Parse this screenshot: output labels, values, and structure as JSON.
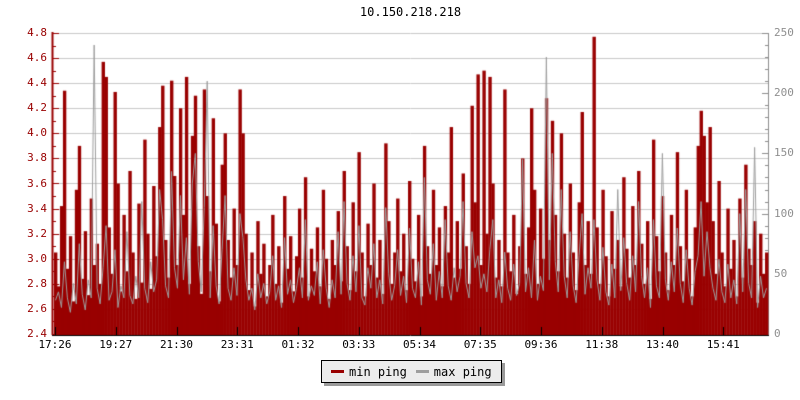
{
  "page": {
    "background": "#ffffff"
  },
  "chart": {
    "title": "10.150.218.218"
  },
  "legend": {
    "items": [
      {
        "label": "min ping",
        "color": "#990000"
      },
      {
        "label": "max ping",
        "color": "#9e9e9e"
      }
    ]
  },
  "chart_data": {
    "type": "bar+line",
    "title": "10.150.218.218",
    "grid": true,
    "legend_position": "bottom-center",
    "colors": {
      "bar": "#990000",
      "line": "#9e9e9e",
      "gridline": "#c8c8c8",
      "left_axis": "#990000",
      "right_axis": "#8c8c8c",
      "bottom_axis": "#000000"
    },
    "x_axis": {
      "tick_labels": [
        "17:26",
        "19:27",
        "21:30",
        "23:31",
        "01:32",
        "03:33",
        "05:34",
        "07:35",
        "09:36",
        "11:38",
        "13:40",
        "15:41"
      ]
    },
    "left_axis": {
      "min": 2.4,
      "max": 4.8,
      "tick_step": 0.2,
      "minor_step": 0.1,
      "tick_labels": [
        "4.8",
        "4.6",
        "4.4",
        "4.2",
        "4.0",
        "3.8",
        "3.6",
        "3.4",
        "3.2",
        "3.0",
        "2.8",
        "2.6",
        "2.4"
      ],
      "label_color": "#990000"
    },
    "right_axis": {
      "min": 0,
      "max": 250,
      "tick_step": 50,
      "minor_step": 10,
      "tick_labels": [
        "250",
        "200",
        "150",
        "100",
        "50",
        "0"
      ],
      "label_color": "#8f8f8f"
    },
    "series": [
      {
        "name": "min ping",
        "type": "bar",
        "axis": "left",
        "color": "#990000",
        "values": [
          3.05,
          2.78,
          3.42,
          4.34,
          2.92,
          3.18,
          2.66,
          3.55,
          3.9,
          2.84,
          3.22,
          2.71,
          3.48,
          2.95,
          3.12,
          2.8,
          4.57,
          4.45,
          3.25,
          2.88,
          4.33,
          3.6,
          2.74,
          3.35,
          2.9,
          3.7,
          3.05,
          2.68,
          3.44,
          2.81,
          3.95,
          3.2,
          2.76,
          3.58,
          3.02,
          4.05,
          4.38,
          3.15,
          2.85,
          4.42,
          3.66,
          2.95,
          4.2,
          3.35,
          4.45,
          2.8,
          3.98,
          4.3,
          3.1,
          2.72,
          4.35,
          3.5,
          2.9,
          4.12,
          3.28,
          2.66,
          3.75,
          4.0,
          3.15,
          2.85,
          3.4,
          2.95,
          4.35,
          4.0,
          3.2,
          2.75,
          3.05,
          2.62,
          3.3,
          2.88,
          3.12,
          2.7,
          2.95,
          3.35,
          2.8,
          3.1,
          2.65,
          3.5,
          2.92,
          3.18,
          2.74,
          3.02,
          3.4,
          2.85,
          3.65,
          2.7,
          3.08,
          2.9,
          3.25,
          2.78,
          3.55,
          3.0,
          2.68,
          3.15,
          2.95,
          3.38,
          2.82,
          3.7,
          3.1,
          2.75,
          3.45,
          2.9,
          3.85,
          3.05,
          2.7,
          3.28,
          2.95,
          3.6,
          2.85,
          3.15,
          2.72,
          3.92,
          3.3,
          2.8,
          3.05,
          3.48,
          2.9,
          3.2,
          2.75,
          3.62,
          3.0,
          2.82,
          3.35,
          2.7,
          3.9,
          3.1,
          2.88,
          3.55,
          2.95,
          3.25,
          2.78,
          3.42,
          3.05,
          4.05,
          2.85,
          3.3,
          2.92,
          3.68,
          3.1,
          2.8,
          4.22,
          3.45,
          4.47,
          2.95,
          4.5,
          3.2,
          4.45,
          3.6,
          2.85,
          3.15,
          2.78,
          4.35,
          3.05,
          2.9,
          3.35,
          2.72,
          3.1,
          3.8,
          2.88,
          3.25,
          4.2,
          3.55,
          2.8,
          3.4,
          3.0,
          4.28,
          3.15,
          4.1,
          3.35,
          2.9,
          4.0,
          3.2,
          2.85,
          3.6,
          3.05,
          2.75,
          3.45,
          4.17,
          2.95,
          3.3,
          2.88,
          4.77,
          3.25,
          2.8,
          3.55,
          3.02,
          2.7,
          3.38,
          2.92,
          3.15,
          2.78,
          3.65,
          3.08,
          2.85,
          3.42,
          2.95,
          3.7,
          3.12,
          2.8,
          3.3,
          2.68,
          3.95,
          3.18,
          2.9,
          3.5,
          3.05,
          2.75,
          3.35,
          2.95,
          3.85,
          3.1,
          2.82,
          3.55,
          3.0,
          2.7,
          3.25,
          3.9,
          4.18,
          3.98,
          3.45,
          4.05,
          3.3,
          2.88,
          3.62,
          3.05,
          2.78,
          3.4,
          2.92,
          3.15,
          2.7,
          3.48,
          2.85,
          3.75,
          3.08,
          2.95,
          3.3,
          2.65,
          3.2,
          2.88,
          3.05
        ]
      },
      {
        "name": "max ping",
        "type": "line",
        "axis": "right",
        "color": "#9e9e9e",
        "values": [
          28,
          35,
          22,
          60,
          30,
          18,
          42,
          25,
          75,
          33,
          20,
          45,
          30,
          240,
          38,
          25,
          55,
          90,
          28,
          35,
          70,
          22,
          40,
          30,
          85,
          32,
          25,
          48,
          30,
          110,
          38,
          26,
          60,
          35,
          45,
          120,
          95,
          40,
          30,
          135,
          55,
          38,
          115,
          45,
          80,
          33,
          125,
          150,
          60,
          35,
          105,
          210,
          30,
          90,
          40,
          25,
          70,
          115,
          38,
          28,
          55,
          32,
          100,
          80,
          45,
          28,
          38,
          20,
          50,
          30,
          42,
          25,
          35,
          65,
          28,
          40,
          22,
          80,
          33,
          45,
          26,
          38,
          55,
          30,
          95,
          28,
          40,
          32,
          60,
          25,
          70,
          38,
          22,
          45,
          30,
          85,
          33,
          110,
          42,
          28,
          65,
          35,
          90,
          30,
          24,
          55,
          38,
          75,
          30,
          45,
          25,
          105,
          50,
          28,
          40,
          70,
          32,
          48,
          26,
          88,
          38,
          30,
          60,
          24,
          130,
          45,
          33,
          75,
          28,
          52,
          30,
          95,
          40,
          28,
          55,
          35,
          48,
          110,
          42,
          30,
          85,
          55,
          65,
          38,
          50,
          35,
          70,
          95,
          30,
          45,
          26,
          68,
          38,
          28,
          58,
          32,
          42,
          145,
          35,
          55,
          30,
          78,
          28,
          48,
          36,
          230,
          45,
          150,
          60,
          35,
          120,
          48,
          30,
          85,
          40,
          26,
          65,
          100,
          33,
          55,
          38,
          95,
          45,
          28,
          72,
          35,
          24,
          58,
          30,
          120,
          36,
          80,
          42,
          28,
          65,
          35,
          110,
          48,
          30,
          55,
          22,
          95,
          40,
          30,
          150,
          45,
          28,
          60,
          35,
          88,
          42,
          26,
          70,
          38,
          24,
          52,
          65,
          110,
          48,
          85,
          55,
          38,
          28,
          62,
          35,
          26,
          58,
          30,
          45,
          25,
          100,
          35,
          120,
          42,
          30,
          155,
          22,
          48,
          30,
          38
        ]
      }
    ]
  }
}
